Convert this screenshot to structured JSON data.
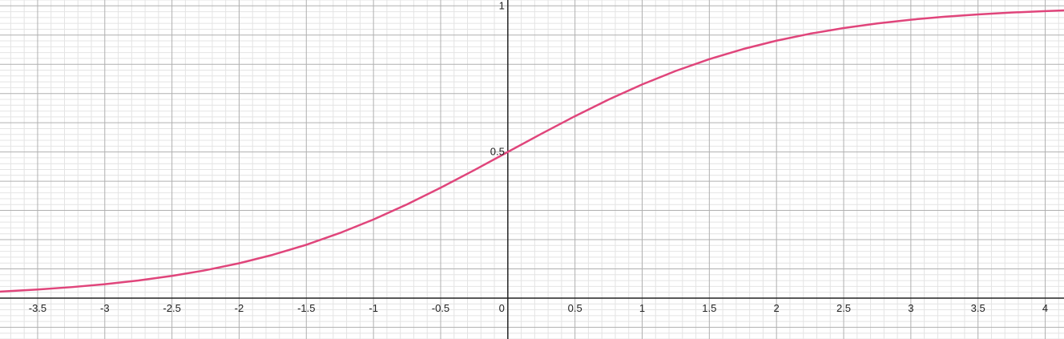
{
  "chart_data": {
    "type": "line",
    "title": "",
    "xlabel": "",
    "ylabel": "",
    "xlim": [
      -3.78,
      4.14
    ],
    "ylim": [
      -0.14,
      1.02
    ],
    "grid": true,
    "x_tick_labels": [
      "-3.5",
      "-3",
      "-2.5",
      "-2",
      "-1.5",
      "-1",
      "-0.5",
      "0",
      "0.5",
      "1",
      "1.5",
      "2",
      "2.5",
      "3",
      "3.5",
      "4"
    ],
    "y_tick_labels": [
      "0.5",
      "1"
    ],
    "series": [
      {
        "color": "#e0457b",
        "x": [
          -3.78,
          -3.5,
          -3.25,
          -3,
          -2.75,
          -2.5,
          -2.25,
          -2,
          -1.75,
          -1.5,
          -1.25,
          -1,
          -0.75,
          -0.5,
          -0.25,
          0,
          0.25,
          0.5,
          0.75,
          1,
          1.25,
          1.5,
          1.75,
          2,
          2.25,
          2.5,
          2.75,
          3,
          3.25,
          3.5,
          3.75,
          4,
          4.14
        ],
        "y": [
          0.0223,
          0.0293,
          0.0374,
          0.0474,
          0.0601,
          0.0759,
          0.0953,
          0.1192,
          0.148,
          0.1824,
          0.2227,
          0.2689,
          0.3208,
          0.3775,
          0.4378,
          0.5,
          0.5622,
          0.6225,
          0.6792,
          0.7311,
          0.7773,
          0.8176,
          0.852,
          0.8808,
          0.9047,
          0.9241,
          0.9399,
          0.9526,
          0.9626,
          0.9707,
          0.9771,
          0.982,
          0.9843
        ]
      }
    ]
  }
}
